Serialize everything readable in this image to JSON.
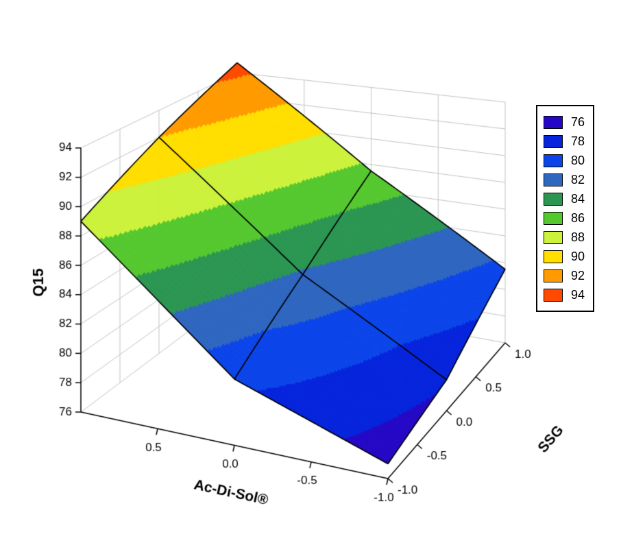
{
  "colors": {
    "background": "#ffffff",
    "grid": "#c3c3c3",
    "axis": "#000000",
    "surface_outline": "#000000"
  },
  "chart_data": {
    "type": "surface",
    "title": "",
    "xlabel": "Ac-Di-Sol®",
    "ylabel": "SSG",
    "zlabel": "Q15",
    "x_tick_values": [
      0.5,
      0.0,
      -0.5,
      -1.0
    ],
    "x_tick_labels": [
      "0.5",
      "0.0",
      "-0.5",
      "-1.0"
    ],
    "y_tick_values": [
      -1.0,
      -0.5,
      0.0,
      0.5,
      1.0
    ],
    "y_tick_labels": [
      "-1.0",
      "-0.5",
      "0.0",
      "0.5",
      "1.0"
    ],
    "z_tick_values": [
      76,
      78,
      80,
      82,
      84,
      86,
      88,
      90,
      92,
      94
    ],
    "z_tick_labels": [
      "76",
      "78",
      "80",
      "82",
      "84",
      "86",
      "88",
      "90",
      "92",
      "94"
    ],
    "zlim": [
      76,
      94
    ],
    "x_range": [
      -1,
      1
    ],
    "y_range": [
      -1,
      1
    ],
    "grid_on": true,
    "surface": {
      "x_acdisol": [
        -1,
        0,
        1
      ],
      "y_ssg": [
        -1,
        0,
        1
      ],
      "z_q15_rows_by_ssg": [
        [
          77.0,
          80.5,
          89.0
        ],
        [
          78.2,
          83.8,
          92.0
        ],
        [
          81.5,
          87.5,
          94.8
        ]
      ],
      "mesh_line_x": [
        0
      ],
      "mesh_line_y": [
        0
      ]
    },
    "bands": {
      "min": 76,
      "step": 2,
      "colors": [
        "#2408C6",
        "#0524DC",
        "#0B45EA",
        "#2E66C0",
        "#2B9652",
        "#55C82F",
        "#CCF23C",
        "#FFDE00",
        "#FF9B00",
        "#FF4A00"
      ]
    },
    "legend": {
      "position": "right",
      "entries": [
        {
          "label": "76",
          "color": "#2408C6"
        },
        {
          "label": "78",
          "color": "#0524DC"
        },
        {
          "label": "80",
          "color": "#0B45EA"
        },
        {
          "label": "82",
          "color": "#2E66C0"
        },
        {
          "label": "84",
          "color": "#2B9652"
        },
        {
          "label": "86",
          "color": "#55C82F"
        },
        {
          "label": "88",
          "color": "#CCF23C"
        },
        {
          "label": "90",
          "color": "#FFDE00"
        },
        {
          "label": "92",
          "color": "#FF9B00"
        },
        {
          "label": "94",
          "color": "#FF4A00"
        }
      ]
    }
  }
}
